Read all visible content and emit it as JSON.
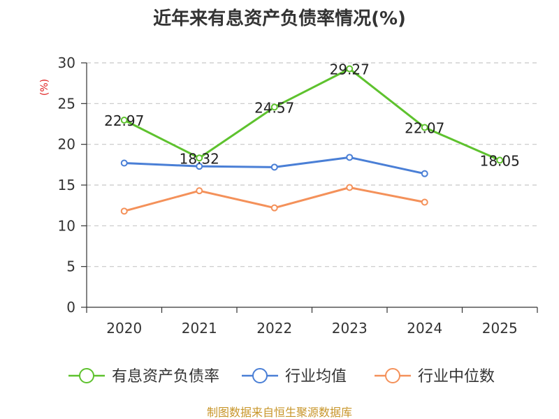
{
  "chart_data": {
    "type": "line",
    "title": "近年来有息资产负债率情况(%)",
    "ylabel": "(%)",
    "xlabel": "",
    "categories": [
      "2020",
      "2021",
      "2022",
      "2023",
      "2024",
      "2025"
    ],
    "ylim": [
      0,
      30
    ],
    "yticks": [
      0,
      5,
      10,
      15,
      20,
      25,
      30
    ],
    "grid": true,
    "legend_position": "bottom",
    "series": [
      {
        "name": "有息资产负债率",
        "color": "#5ec22e",
        "values": [
          22.97,
          18.32,
          24.57,
          29.27,
          22.07,
          18.05
        ],
        "labels": [
          "22.97",
          "18.32",
          "24.57",
          "29.27",
          "22.07",
          "18.05"
        ],
        "show_labels": true
      },
      {
        "name": "行业均值",
        "color": "#4a7fd6",
        "values": [
          17.7,
          17.3,
          17.2,
          18.4,
          16.4,
          null
        ],
        "show_labels": false
      },
      {
        "name": "行业中位数",
        "color": "#f4915a",
        "values": [
          11.8,
          14.3,
          12.2,
          14.7,
          12.9,
          null
        ],
        "show_labels": false
      }
    ]
  },
  "footer": {
    "source": "制图数据来自恒生聚源数据库"
  }
}
